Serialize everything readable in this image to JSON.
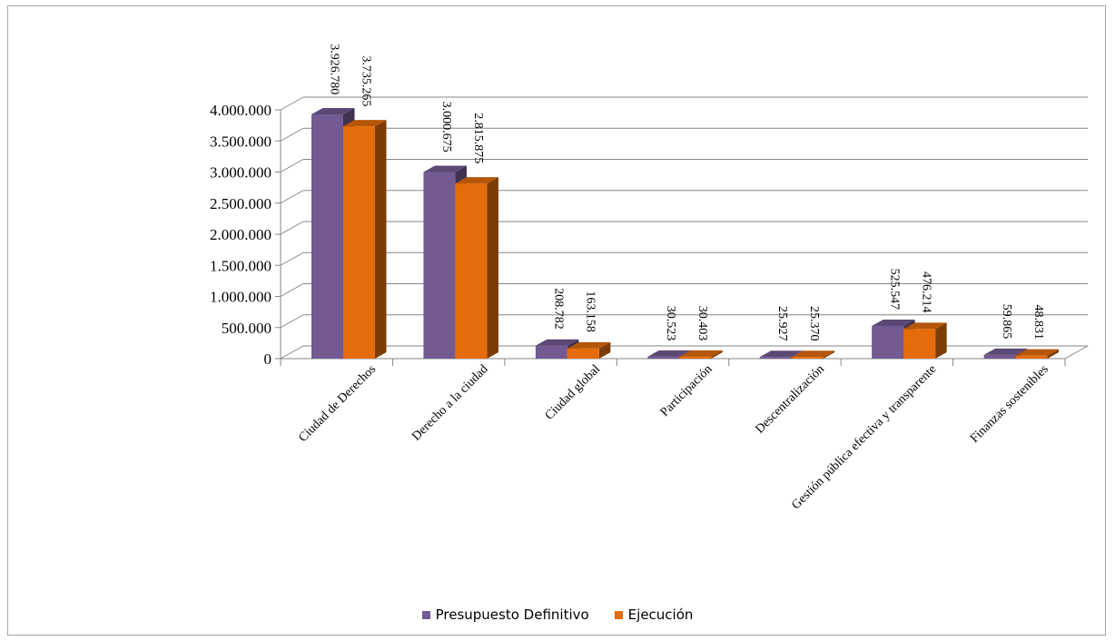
{
  "chart_data": {
    "type": "bar",
    "categories": [
      "Ciudad de Derechos",
      "Derecho a la ciudad",
      "Ciudad global",
      "Participación",
      "Descentralización",
      "Gestión pública efectiva y transparente",
      "Finanzas sostenibles"
    ],
    "series": [
      {
        "name": "Presupuesto Definitivo",
        "color": "#735a92",
        "values": [
          3926780,
          3000675,
          208782,
          30523,
          25927,
          525547,
          59865
        ],
        "labels": [
          "3.926.780",
          "3.000.675",
          "208.782",
          "30.523",
          "25.927",
          "525.547",
          "59.865"
        ]
      },
      {
        "name": "Ejecución",
        "color": "#e46c0a",
        "values": [
          3735265,
          2815875,
          163158,
          30403,
          25370,
          476214,
          48831
        ],
        "labels": [
          "3.735.265",
          "2.815.875",
          "163.158",
          "30.403",
          "25.370",
          "476.214",
          "48.831"
        ]
      }
    ],
    "yticks": [
      "0",
      "500.000",
      "1.000.000",
      "1.500.000",
      "2.000.000",
      "2.500.000",
      "3.000.000",
      "3.500.000",
      "4.000.000"
    ],
    "ylim": [
      0,
      4000000
    ],
    "title": "",
    "xlabel": "",
    "ylabel": "",
    "grid": true,
    "legend_position": "bottom"
  }
}
